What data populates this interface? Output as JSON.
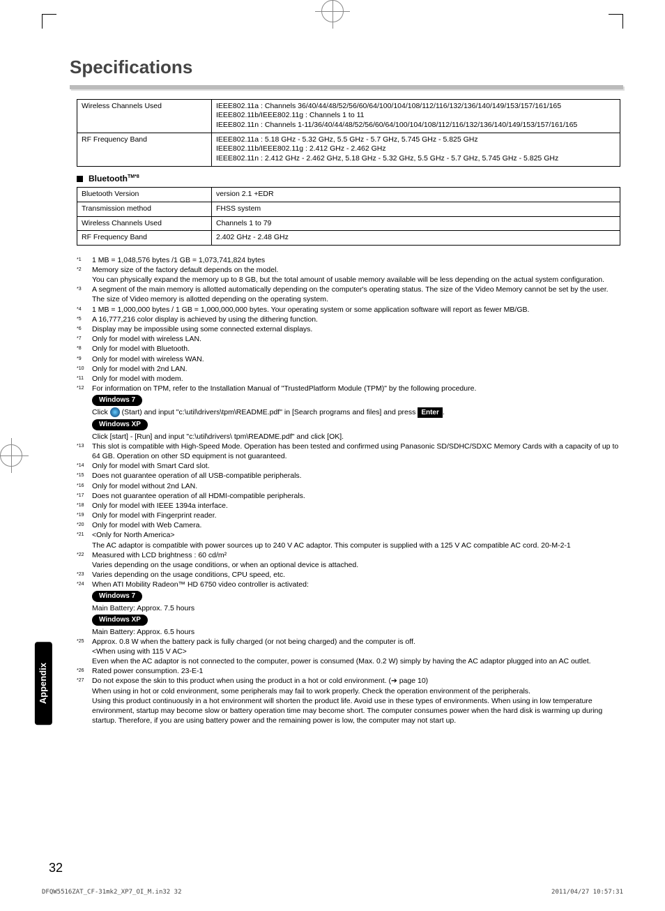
{
  "title": "Specifications",
  "table1": {
    "rows": [
      {
        "label": "Wireless Channels Used",
        "value": "IEEE802.11a : Channels 36/40/44/48/52/56/60/64/100/104/108/112/116/132/136/140/149/153/157/161/165\nIEEE802.11b/IEEE802.11g : Channels 1 to 11\nIEEE802.11n : Channels 1-11/36/40/44/48/52/56/60/64/100/104/108/112/116/132/136/140/149/153/157/161/165"
      },
      {
        "label": "RF Frequency Band",
        "value": "IEEE802.11a : 5.18 GHz - 5.32 GHz, 5.5 GHz - 5.7 GHz, 5.745 GHz - 5.825 GHz\nIEEE802.11b/IEEE802.11g : 2.412 GHz - 2.462 GHz\nIEEE802.11n : 2.412 GHz - 2.462 GHz, 5.18 GHz - 5.32 GHz, 5.5 GHz - 5.7 GHz, 5.745 GHz - 5.825 GHz"
      }
    ]
  },
  "bt_heading": "Bluetooth™*8",
  "table2": {
    "rows": [
      {
        "label": "Bluetooth Version",
        "value": "version 2.1 +EDR"
      },
      {
        "label": "Transmission method",
        "value": "FHSS system"
      },
      {
        "label": "Wireless Channels Used",
        "value": "Channels 1 to 79"
      },
      {
        "label": "RF Frequency Band",
        "value": "2.402 GHz - 2.48 GHz"
      }
    ]
  },
  "footnotes": [
    {
      "ref": "*1",
      "text": "1 MB = 1,048,576 bytes /1 GB = 1,073,741,824 bytes"
    },
    {
      "ref": "*2",
      "text": "Memory size of the factory default depends on the model.\nYou can physically expand the memory up to 8 GB, but the total amount of usable memory available will be less depending on the actual system configuration."
    },
    {
      "ref": "*3",
      "text": "A segment of the main memory is allotted automatically depending on the computer's operating status. The size of the Video Memory cannot be set by the user. The size of Video memory is allotted depending on the operating system."
    },
    {
      "ref": "*4",
      "text": "1 MB = 1,000,000 bytes / 1 GB = 1,000,000,000 bytes. Your operating system or some application software will report as fewer MB/GB."
    },
    {
      "ref": "*5",
      "text": "A 16,777,216 color display is achieved by using the dithering function."
    },
    {
      "ref": "*6",
      "text": "Display may be impossible using some connected external displays."
    },
    {
      "ref": "*7",
      "text": "Only for model with wireless LAN."
    },
    {
      "ref": "*8",
      "text": "Only for model with Bluetooth."
    },
    {
      "ref": "*9",
      "text": "Only for model with wireless WAN."
    },
    {
      "ref": "*10",
      "text": "Only for model with 2nd LAN."
    },
    {
      "ref": "*11",
      "text": "Only for model with modem."
    },
    {
      "ref": "*12",
      "text": "For information on TPM, refer to the Installation Manual of \"TrustedPlatform Module (TPM)\" by the following procedure.",
      "special": "tpm"
    },
    {
      "ref": "*13",
      "text": "This slot is compatible with High-Speed Mode. Operation has been tested and confirmed using Panasonic SD/SDHC/SDXC Memory Cards with a capacity of up to 64 GB. Operation on other SD equipment is not guaranteed."
    },
    {
      "ref": "*14",
      "text": "Only for model with Smart Card slot."
    },
    {
      "ref": "*15",
      "text": "Does not guarantee operation of all USB-compatible peripherals."
    },
    {
      "ref": "*16",
      "text": "Only for model without 2nd LAN."
    },
    {
      "ref": "*17",
      "text": "Does not guarantee operation of all HDMI-compatible peripherals."
    },
    {
      "ref": "*18",
      "text": "Only for model with IEEE 1394a interface."
    },
    {
      "ref": "*19",
      "text": "Only for model with Fingerprint reader."
    },
    {
      "ref": "*20",
      "text": "Only for model with Web Camera."
    },
    {
      "ref": "*21",
      "text": "<Only for North America>\nThe AC adaptor is compatible with power sources up to 240 V AC adaptor. This computer is supplied with a 125 V AC compatible AC cord.        20-M-2-1"
    },
    {
      "ref": "*22",
      "text": "Measured with LCD brightness : 60 cd/m²\nVaries depending on the usage conditions, or when an optional device is attached."
    },
    {
      "ref": "*23",
      "text": "Varies depending on the usage conditions, CPU speed, etc."
    },
    {
      "ref": "*24",
      "text": "When ATI Mobility Radeon™ HD 6750 video controller is activated:",
      "special": "battery"
    },
    {
      "ref": "*25",
      "text": "Approx. 0.8 W when the battery pack is fully charged (or not being charged) and the computer is off.\n<When using with 115 V AC>\nEven when the AC adaptor is not connected to the computer, power is consumed (Max. 0.2 W) simply by having the AC adaptor plugged into an AC outlet."
    },
    {
      "ref": "*26",
      "text": "Rated power consumption.     23-E-1"
    },
    {
      "ref": "*27",
      "text": "Do not expose the skin to this product when using the product in a hot or cold environment. (➔ page 10)\nWhen using in hot or cold environment, some peripherals may fail to work properly. Check the operation environment of the peripherals.\nUsing this product continuously in a hot environment will shorten the product life. Avoid use in these types of environments. When using in low temperature environment, startup may become slow or battery operation time may become short. The computer consumes power when the hard disk is warming up during startup. Therefore, if you are using battery power and the remaining power is low, the computer may not start up."
    }
  ],
  "tpm_block": {
    "win7_label": "Windows 7",
    "win7_text_a": "Click ",
    "win7_text_b": " (Start) and input \"c:\\util\\drivers\\tpm\\README.pdf\" in [Search programs and files] and press ",
    "enter_label": "Enter",
    "winxp_label": "Windows XP",
    "winxp_text": "Click [start] - [Run] and input \"c:\\util\\drivers\\ tpm\\README.pdf\" and click [OK]."
  },
  "battery_block": {
    "win7_label": "Windows 7",
    "win7_text": "Main Battery: Approx. 7.5 hours",
    "winxp_label": "Windows XP",
    "winxp_text": "Main Battery: Approx. 6.5 hours"
  },
  "side_tab": "Appendix",
  "page_number": "32",
  "footer_left": "DFQW5516ZAT_CF-31mk2_XP7_OI_M.in32   32",
  "footer_right": "2011/04/27   10:57:31"
}
